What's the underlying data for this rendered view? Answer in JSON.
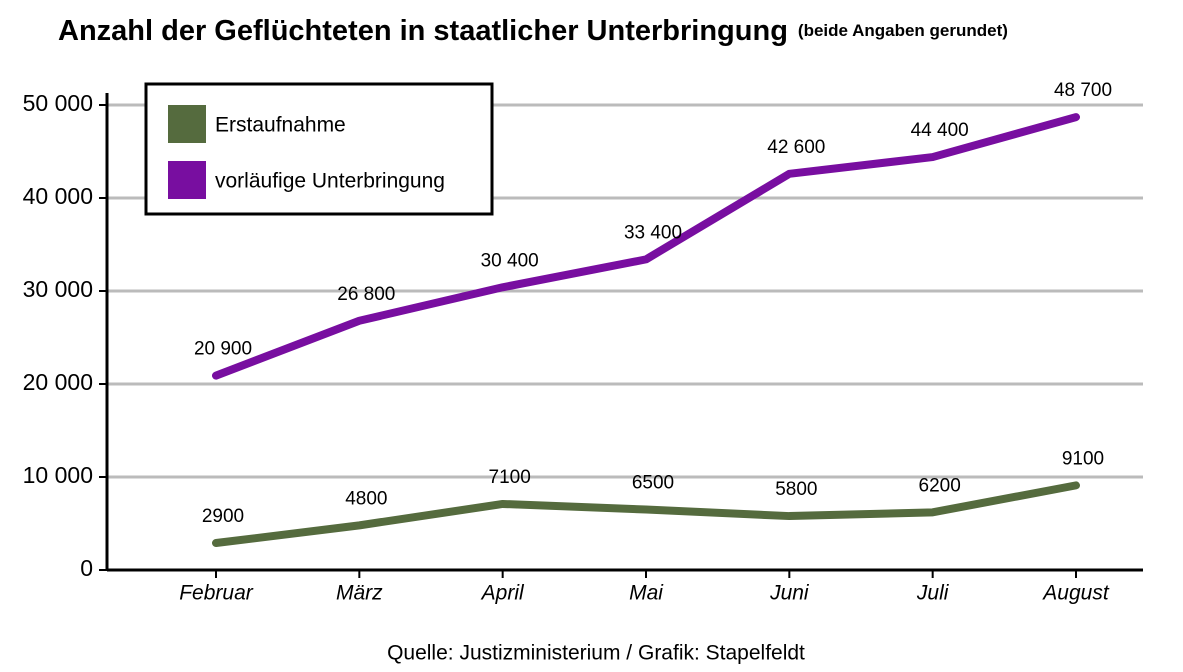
{
  "chart_data": {
    "type": "line",
    "title": "Anzahl der Geflüchteten in staatlicher Unterbringung",
    "subtitle": "(beide Angaben gerundet)",
    "source": "Quelle: Justizministerium  / Grafik: Stapelfeldt",
    "categories": [
      "Februar",
      "März",
      "April",
      "Mai",
      "Juni",
      "Juli",
      "August"
    ],
    "series": [
      {
        "name": "Erstaufnahme",
        "color": "#556b3e",
        "values": [
          2900,
          4800,
          7100,
          6500,
          5800,
          6200,
          9100
        ]
      },
      {
        "name": "vorläufige Unterbringung",
        "color": "#780ea0",
        "values": [
          20900,
          26800,
          30400,
          33400,
          42600,
          44400,
          48700
        ],
        "value_labels": [
          "20 900",
          "26 800",
          "30 400",
          "33 400",
          "42 600",
          "44 400",
          "48 700"
        ]
      }
    ],
    "ylim": [
      0,
      50000
    ],
    "yticks": [
      0,
      {
        "value": 10000,
        "label": "10 000"
      },
      {
        "value": 20000,
        "label": "20 000"
      },
      {
        "value": 30000,
        "label": "30 000"
      },
      {
        "value": 40000,
        "label": "40 000"
      },
      {
        "value": 50000,
        "label": "50 000"
      }
    ],
    "grid": true,
    "legend": "upper left"
  }
}
